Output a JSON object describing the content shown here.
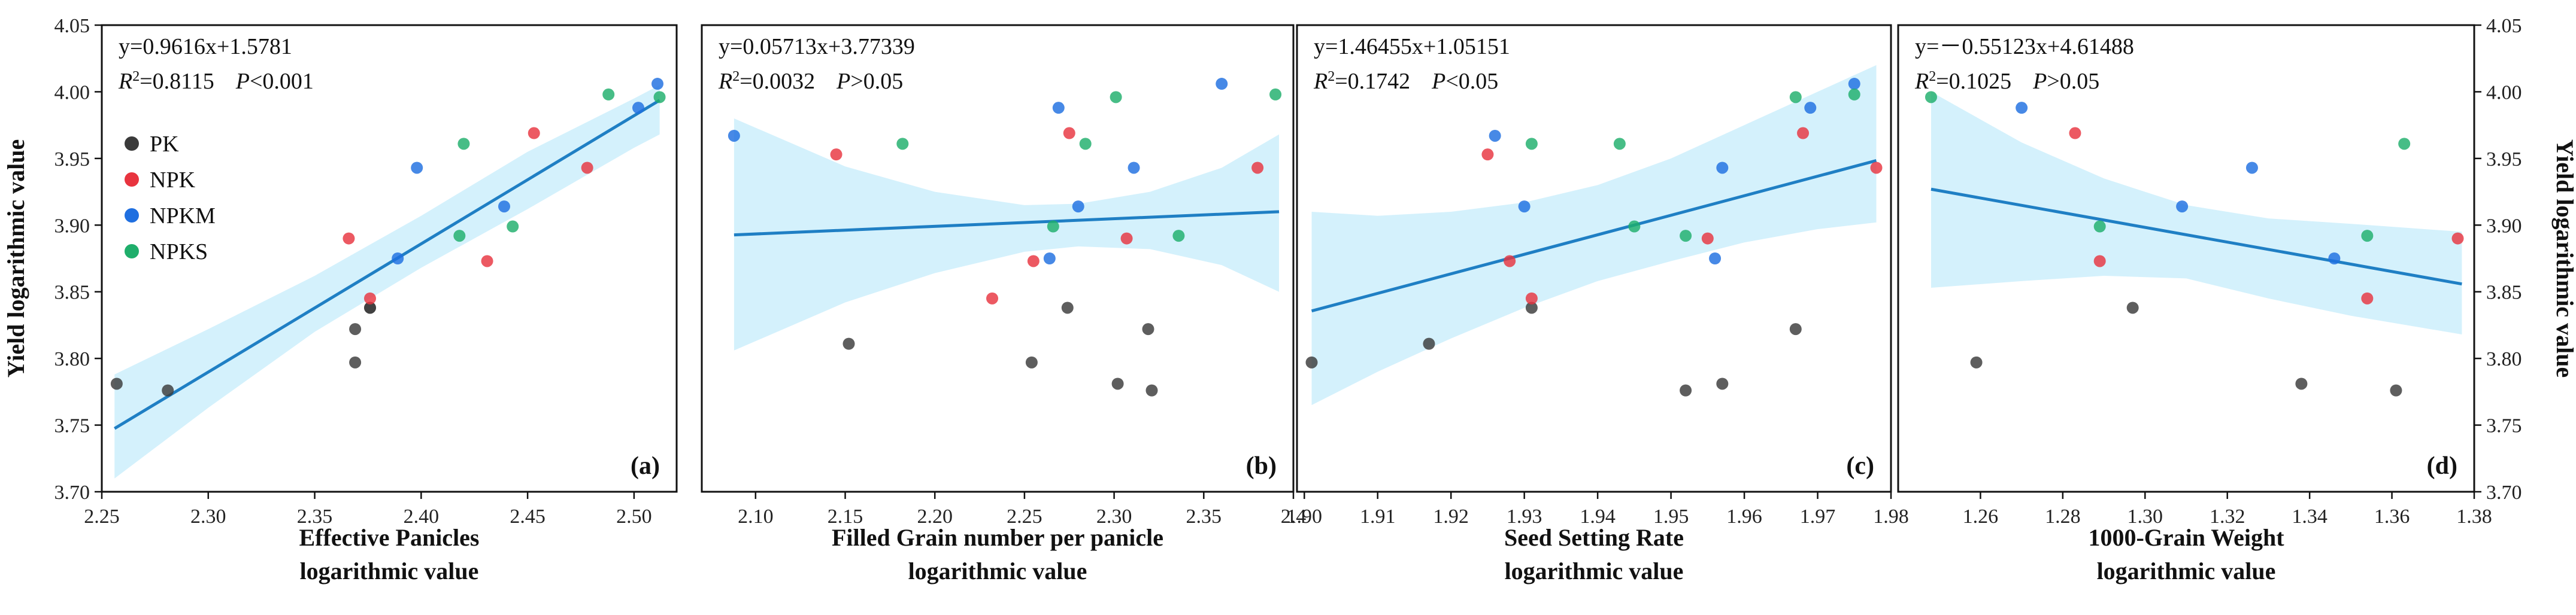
{
  "colors": {
    "PK": "#3a3a3a",
    "NPK": "#e8343f",
    "NPKM": "#1f6fe0",
    "NPKS": "#1fae6b",
    "fit_line": "#1f7fc4",
    "band": "#cdeefb"
  },
  "legend": [
    "PK",
    "NPK",
    "NPKM",
    "NPKS"
  ],
  "y_axis_title": "Yield logarithmic value",
  "chart_data": [
    {
      "type": "scatter",
      "panel_label": "(a)",
      "equation": "y=0.9616x+1.5781",
      "r2_label": "R²=0.8115",
      "p_label": "P<0.001",
      "xlabel_line1": "Effective Panicles",
      "xlabel_line2": "logarithmic value",
      "ylabel": "Yield logarithmic value",
      "xlim": [
        2.25,
        2.52
      ],
      "ylim": [
        3.7,
        4.05
      ],
      "xticks": [
        "2.25",
        "2.30",
        "2.35",
        "2.40",
        "2.45",
        "2.50"
      ],
      "yticks": [
        "3.70",
        "3.75",
        "3.80",
        "3.85",
        "3.90",
        "3.95",
        "4.00",
        "4.05"
      ],
      "fit": {
        "slope": 0.9616,
        "intercept": 1.5781,
        "x_range": [
          2.256,
          2.512
        ]
      },
      "band": {
        "x": [
          2.256,
          2.3,
          2.35,
          2.4,
          2.45,
          2.5,
          2.512
        ],
        "upper": [
          3.788,
          3.822,
          3.862,
          3.907,
          3.955,
          3.995,
          4.005
        ],
        "lower": [
          3.71,
          3.763,
          3.82,
          3.868,
          3.912,
          3.958,
          3.968
        ]
      },
      "series": [
        {
          "name": "PK",
          "points": [
            [
              2.257,
              3.781
            ],
            [
              2.281,
              3.776
            ],
            [
              2.369,
              3.822
            ],
            [
              2.369,
              3.797
            ],
            [
              2.376,
              3.838
            ],
            [
              2.376,
              3.838
            ]
          ]
        },
        {
          "name": "NPK",
          "points": [
            [
              2.366,
              3.89
            ],
            [
              2.376,
              3.845
            ],
            [
              2.431,
              3.873
            ],
            [
              2.453,
              3.969
            ],
            [
              2.478,
              3.943
            ]
          ]
        },
        {
          "name": "NPKM",
          "points": [
            [
              2.389,
              3.875
            ],
            [
              2.398,
              3.943
            ],
            [
              2.439,
              3.914
            ],
            [
              2.502,
              3.988
            ],
            [
              2.511,
              4.006
            ]
          ]
        },
        {
          "name": "NPKS",
          "points": [
            [
              2.418,
              3.892
            ],
            [
              2.42,
              3.961
            ],
            [
              2.443,
              3.899
            ],
            [
              2.488,
              3.998
            ],
            [
              2.512,
              3.996
            ]
          ]
        }
      ]
    },
    {
      "type": "scatter",
      "panel_label": "(b)",
      "equation": "y=0.05713x+3.77339",
      "r2_label": "R²=0.0032",
      "p_label": "P>0.05",
      "xlabel_line1": "Filled Grain number per panicle",
      "xlabel_line2": "logarithmic value",
      "ylabel": "",
      "xlim": [
        2.07,
        2.4
      ],
      "ylim": [
        3.7,
        4.05
      ],
      "xticks": [
        "2.10",
        "2.15",
        "2.20",
        "2.25",
        "2.30",
        "2.35",
        "2.4"
      ],
      "yticks": [],
      "fit": {
        "slope": 0.05713,
        "intercept": 3.77339,
        "x_range": [
          2.088,
          2.392
        ]
      },
      "band": {
        "x": [
          2.088,
          2.15,
          2.2,
          2.25,
          2.28,
          2.32,
          2.36,
          2.392
        ],
        "upper": [
          3.98,
          3.944,
          3.925,
          3.915,
          3.916,
          3.925,
          3.943,
          3.968
        ],
        "lower": [
          3.806,
          3.842,
          3.864,
          3.88,
          3.884,
          3.882,
          3.87,
          3.85
        ]
      },
      "series": [
        {
          "name": "PK",
          "points": [
            [
              2.152,
              3.811
            ],
            [
              2.254,
              3.797
            ],
            [
              2.274,
              3.838
            ],
            [
              2.302,
              3.781
            ],
            [
              2.319,
              3.822
            ],
            [
              2.321,
              3.776
            ]
          ]
        },
        {
          "name": "NPK",
          "points": [
            [
              2.145,
              3.953
            ],
            [
              2.232,
              3.845
            ],
            [
              2.255,
              3.873
            ],
            [
              2.275,
              3.969
            ],
            [
              2.307,
              3.89
            ],
            [
              2.38,
              3.943
            ]
          ]
        },
        {
          "name": "NPKM",
          "points": [
            [
              2.088,
              3.967
            ],
            [
              2.264,
              3.875
            ],
            [
              2.269,
              3.988
            ],
            [
              2.28,
              3.914
            ],
            [
              2.311,
              3.943
            ],
            [
              2.36,
              4.006
            ]
          ]
        },
        {
          "name": "NPKS",
          "points": [
            [
              2.182,
              3.961
            ],
            [
              2.266,
              3.899
            ],
            [
              2.284,
              3.961
            ],
            [
              2.301,
              3.996
            ],
            [
              2.336,
              3.892
            ],
            [
              2.39,
              3.998
            ]
          ]
        }
      ]
    },
    {
      "type": "scatter",
      "panel_label": "(c)",
      "equation": "y=1.46455x+1.05151",
      "r2_label": "R²=0.1742",
      "p_label": "P<0.05",
      "xlabel_line1": "Seed Setting Rate",
      "xlabel_line2": "logarithmic value",
      "ylabel": "",
      "xlim": [
        1.899,
        1.98
      ],
      "ylim": [
        3.7,
        4.05
      ],
      "xticks": [
        "1.90",
        "1.91",
        "1.92",
        "1.93",
        "1.94",
        "1.95",
        "1.96",
        "1.97",
        "1.98"
      ],
      "yticks": [],
      "fit": {
        "slope": 1.46455,
        "intercept": 1.05151,
        "x_range": [
          1.901,
          1.978
        ]
      },
      "band": {
        "x": [
          1.901,
          1.91,
          1.92,
          1.93,
          1.94,
          1.95,
          1.96,
          1.97,
          1.978
        ],
        "upper": [
          3.91,
          3.907,
          3.91,
          3.917,
          3.93,
          3.95,
          3.975,
          4.0,
          4.02
        ],
        "lower": [
          3.765,
          3.79,
          3.815,
          3.838,
          3.858,
          3.873,
          3.887,
          3.897,
          3.902
        ]
      },
      "series": [
        {
          "name": "PK",
          "points": [
            [
              1.901,
              3.797
            ],
            [
              1.917,
              3.811
            ],
            [
              1.931,
              3.838
            ],
            [
              1.952,
              3.776
            ],
            [
              1.957,
              3.781
            ],
            [
              1.967,
              3.822
            ]
          ]
        },
        {
          "name": "NPK",
          "points": [
            [
              1.925,
              3.953
            ],
            [
              1.928,
              3.873
            ],
            [
              1.931,
              3.845
            ],
            [
              1.955,
              3.89
            ],
            [
              1.968,
              3.969
            ],
            [
              1.978,
              3.943
            ]
          ]
        },
        {
          "name": "NPKM",
          "points": [
            [
              1.926,
              3.967
            ],
            [
              1.93,
              3.914
            ],
            [
              1.956,
              3.875
            ],
            [
              1.957,
              3.943
            ],
            [
              1.969,
              3.988
            ],
            [
              1.975,
              4.006
            ]
          ]
        },
        {
          "name": "NPKS",
          "points": [
            [
              1.931,
              3.961
            ],
            [
              1.943,
              3.961
            ],
            [
              1.945,
              3.899
            ],
            [
              1.952,
              3.892
            ],
            [
              1.967,
              3.996
            ],
            [
              1.975,
              3.998
            ]
          ]
        }
      ]
    },
    {
      "type": "scatter",
      "panel_label": "(d)",
      "equation": "y=－0.55123x+4.61488",
      "r2_label": "R²=0.1025",
      "p_label": "P>0.05",
      "xlabel_line1": "1000-Grain Weight",
      "xlabel_line2": "logarithmic value",
      "ylabel": "Yield logarithmic value",
      "xlim": [
        1.24,
        1.38
      ],
      "ylim": [
        3.7,
        4.05
      ],
      "xticks": [
        "1.26",
        "1.28",
        "1.30",
        "1.32",
        "1.34",
        "1.36",
        "1.38"
      ],
      "yticks": [
        "3.70",
        "3.75",
        "3.80",
        "3.85",
        "3.90",
        "3.95",
        "4.00",
        "4.05"
      ],
      "fit": {
        "slope": -0.55123,
        "intercept": 4.61488,
        "x_range": [
          1.248,
          1.377
        ]
      },
      "band": {
        "x": [
          1.248,
          1.27,
          1.29,
          1.31,
          1.33,
          1.35,
          1.377
        ],
        "upper": [
          4.0,
          3.962,
          3.935,
          3.915,
          3.905,
          3.901,
          3.895
        ],
        "lower": [
          3.853,
          3.858,
          3.862,
          3.86,
          3.845,
          3.832,
          3.818
        ]
      },
      "series": [
        {
          "name": "PK",
          "points": [
            [
              1.259,
              3.797
            ],
            [
              1.297,
              3.838
            ],
            [
              1.338,
              3.781
            ],
            [
              1.361,
              3.776
            ]
          ]
        },
        {
          "name": "NPK",
          "points": [
            [
              1.283,
              3.969
            ],
            [
              1.289,
              3.873
            ],
            [
              1.354,
              3.845
            ],
            [
              1.376,
              3.89
            ]
          ]
        },
        {
          "name": "NPKM",
          "points": [
            [
              1.27,
              3.988
            ],
            [
              1.309,
              3.914
            ],
            [
              1.326,
              3.943
            ],
            [
              1.346,
              3.875
            ]
          ]
        },
        {
          "name": "NPKS",
          "points": [
            [
              1.248,
              3.996
            ],
            [
              1.289,
              3.899
            ],
            [
              1.354,
              3.892
            ],
            [
              1.363,
              3.961
            ]
          ]
        }
      ]
    }
  ]
}
